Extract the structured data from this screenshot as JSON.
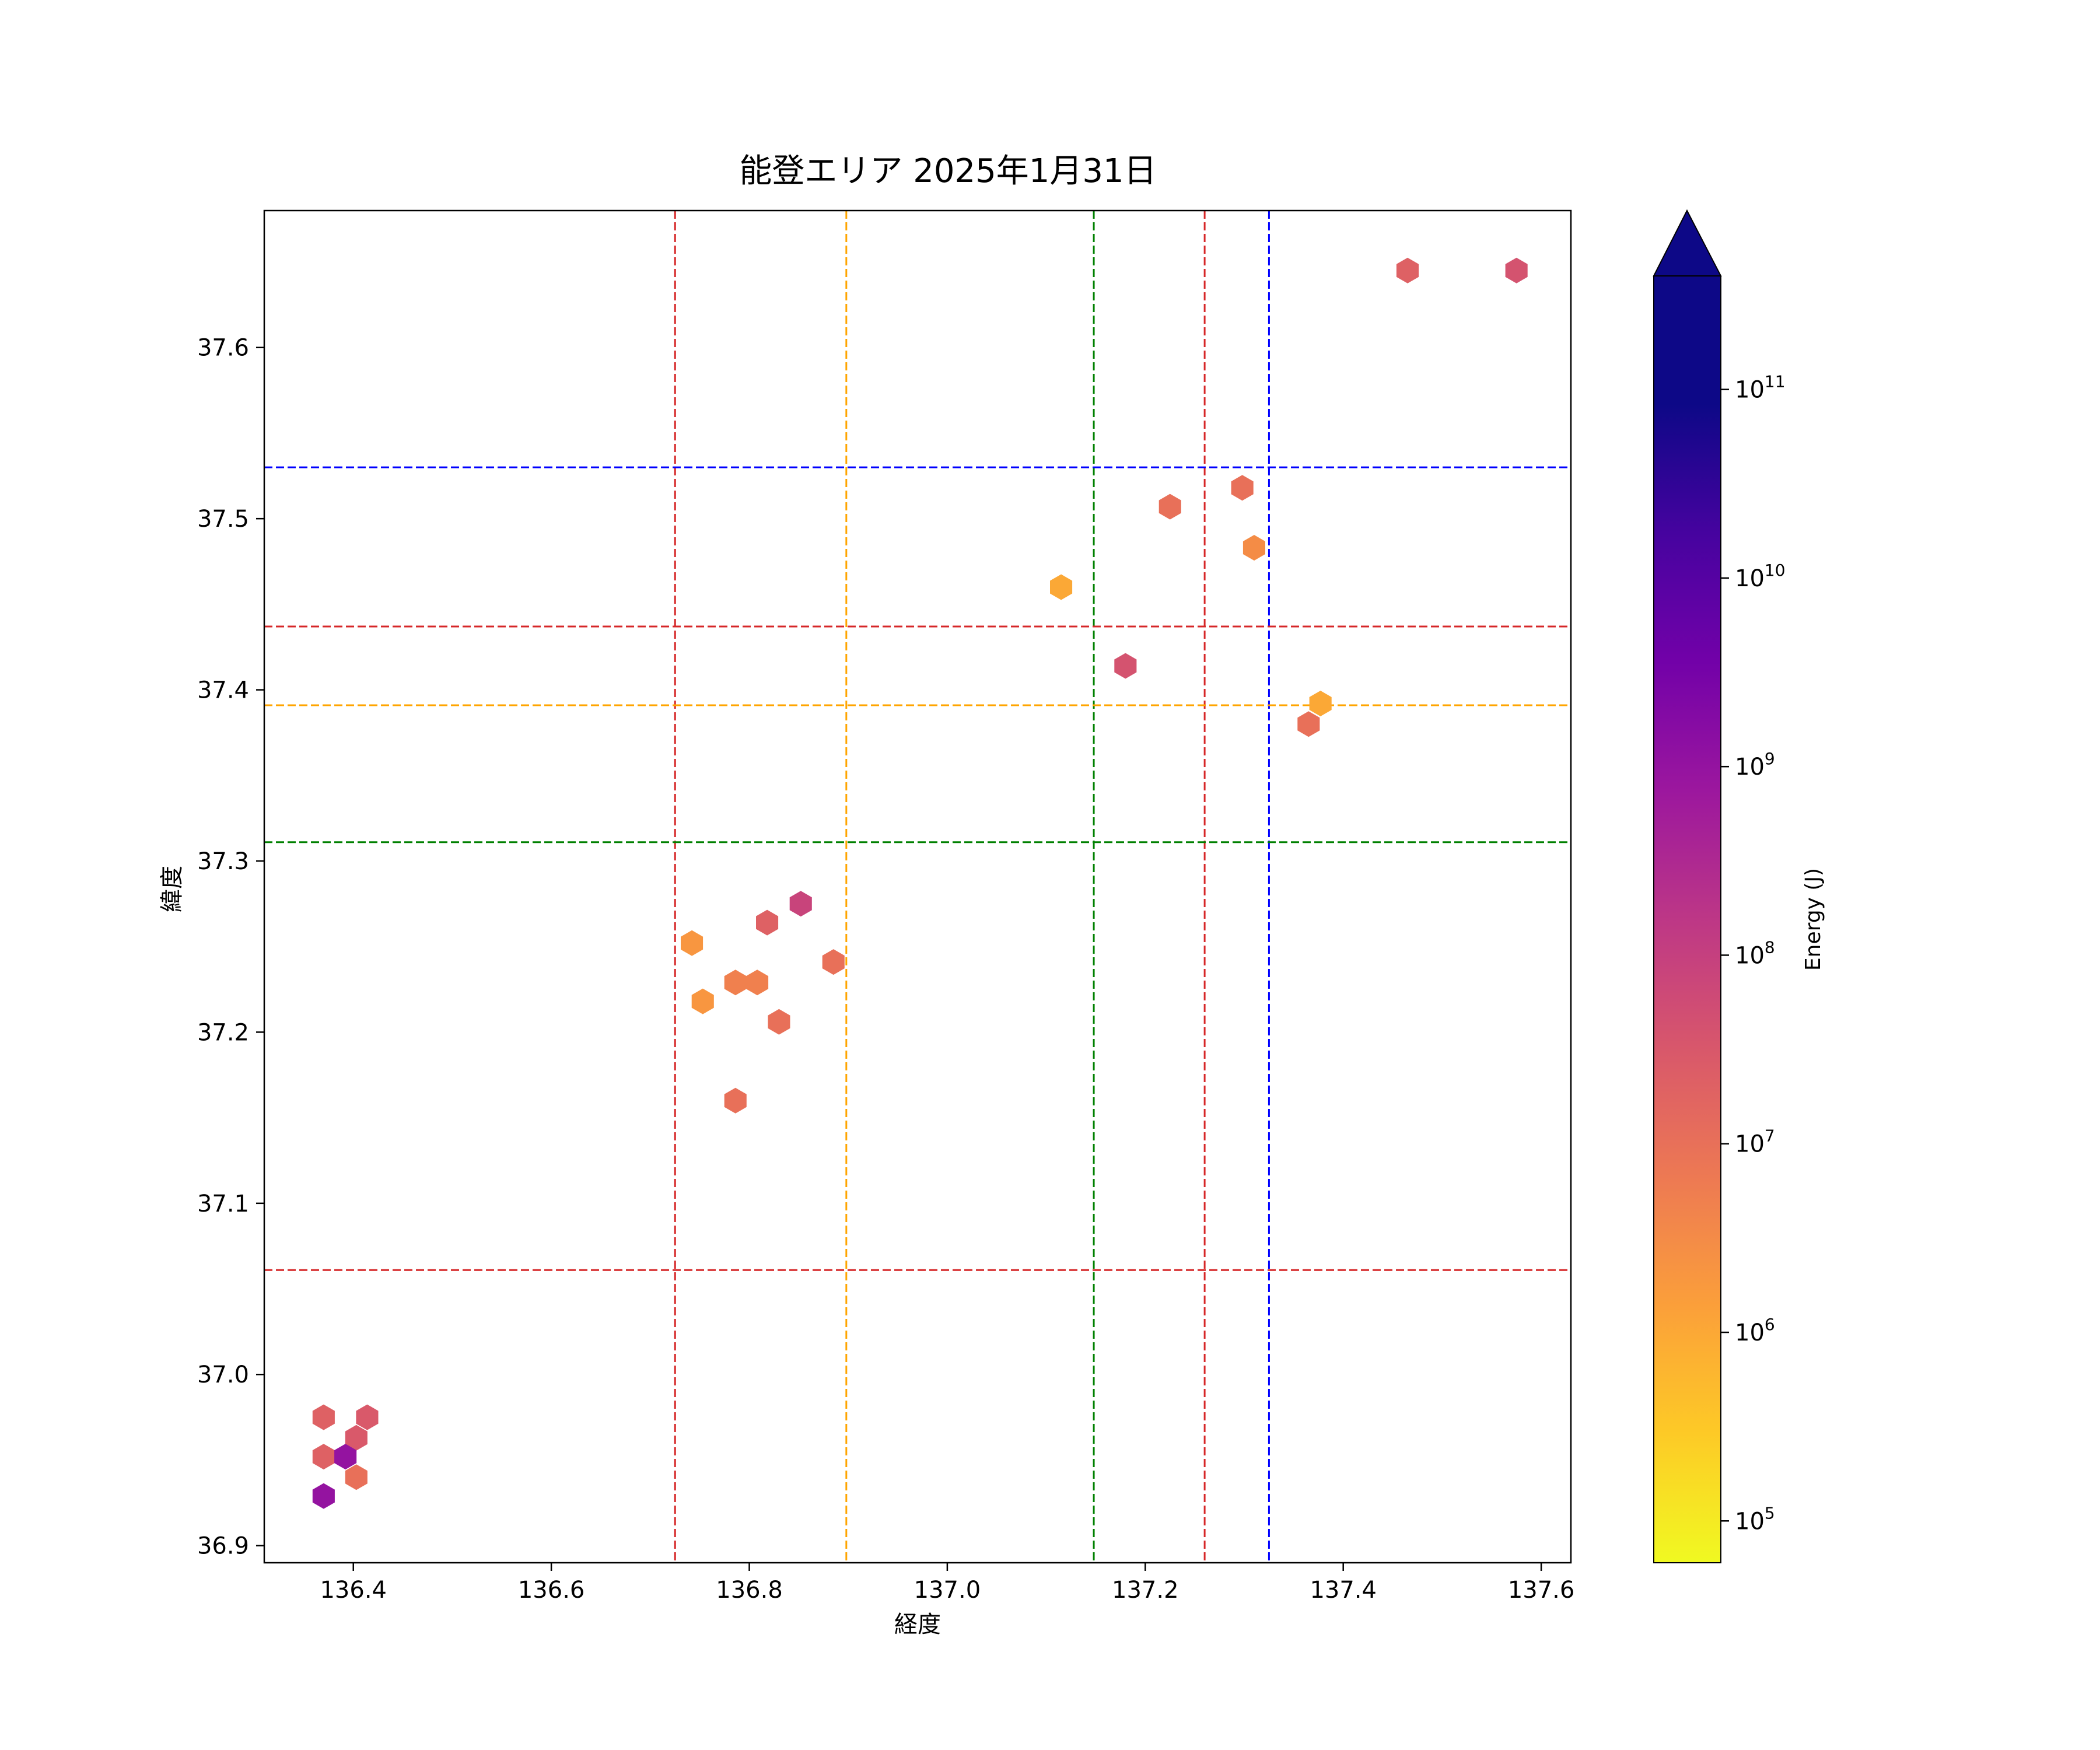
{
  "chart_data": {
    "type": "heatmap",
    "subtype": "hexbin",
    "title": "能登エリア 2025年1月31日",
    "xlabel": "経度",
    "ylabel": "緯度",
    "xlim": [
      136.31,
      137.63
    ],
    "ylim": [
      36.89,
      37.68
    ],
    "xticks": [
      136.4,
      136.6,
      136.8,
      137.0,
      137.2,
      137.4,
      137.6
    ],
    "xtick_labels": [
      "136.4",
      "136.6",
      "136.8",
      "137.0",
      "137.2",
      "137.4",
      "137.6"
    ],
    "yticks": [
      36.9,
      37.0,
      37.1,
      37.2,
      37.3,
      37.4,
      37.5,
      37.6
    ],
    "ytick_labels": [
      "36.9",
      "37.0",
      "37.1",
      "37.2",
      "37.3",
      "37.4",
      "37.5",
      "37.6"
    ],
    "grid": false,
    "points": [
      {
        "x": 137.465,
        "y": 37.645,
        "energy": 20000000.0
      },
      {
        "x": 137.575,
        "y": 37.645,
        "energy": 40000000.0
      },
      {
        "x": 137.298,
        "y": 37.518,
        "energy": 10000000.0
      },
      {
        "x": 137.225,
        "y": 37.507,
        "energy": 10000000.0
      },
      {
        "x": 137.31,
        "y": 37.483,
        "energy": 3000000.0
      },
      {
        "x": 137.115,
        "y": 37.46,
        "energy": 1000000.0
      },
      {
        "x": 137.18,
        "y": 37.414,
        "energy": 40000000.0
      },
      {
        "x": 137.377,
        "y": 37.392,
        "energy": 1000000.0
      },
      {
        "x": 137.365,
        "y": 37.38,
        "energy": 10000000.0
      },
      {
        "x": 136.852,
        "y": 37.275,
        "energy": 80000000.0
      },
      {
        "x": 136.818,
        "y": 37.264,
        "energy": 20000000.0
      },
      {
        "x": 136.742,
        "y": 37.252,
        "energy": 2000000.0
      },
      {
        "x": 136.885,
        "y": 37.241,
        "energy": 10000000.0
      },
      {
        "x": 136.786,
        "y": 37.229,
        "energy": 5000000.0
      },
      {
        "x": 136.808,
        "y": 37.229,
        "energy": 5000000.0
      },
      {
        "x": 136.753,
        "y": 37.218,
        "energy": 2000000.0
      },
      {
        "x": 136.83,
        "y": 37.206,
        "energy": 10000000.0
      },
      {
        "x": 136.786,
        "y": 37.16,
        "energy": 10000000.0
      },
      {
        "x": 136.37,
        "y": 36.975,
        "energy": 20000000.0
      },
      {
        "x": 136.414,
        "y": 36.975,
        "energy": 30000000.0
      },
      {
        "x": 136.403,
        "y": 36.963,
        "energy": 30000000.0
      },
      {
        "x": 136.37,
        "y": 36.952,
        "energy": 20000000.0
      },
      {
        "x": 136.392,
        "y": 36.952,
        "energy": 1000000000.0
      },
      {
        "x": 136.403,
        "y": 36.94,
        "energy": 10000000.0
      },
      {
        "x": 136.37,
        "y": 36.929,
        "energy": 1000000000.0
      }
    ],
    "reference_lines": [
      {
        "orientation": "vertical",
        "value": 136.725,
        "color": "#d62728"
      },
      {
        "orientation": "vertical",
        "value": 136.898,
        "color": "#ffa500"
      },
      {
        "orientation": "vertical",
        "value": 137.148,
        "color": "#008000"
      },
      {
        "orientation": "vertical",
        "value": 137.26,
        "color": "#d62728"
      },
      {
        "orientation": "vertical",
        "value": 137.325,
        "color": "#0000ff"
      },
      {
        "orientation": "horizontal",
        "value": 37.53,
        "color": "#0000ff"
      },
      {
        "orientation": "horizontal",
        "value": 37.437,
        "color": "#d62728"
      },
      {
        "orientation": "horizontal",
        "value": 37.391,
        "color": "#ffa500"
      },
      {
        "orientation": "horizontal",
        "value": 37.311,
        "color": "#008000"
      },
      {
        "orientation": "horizontal",
        "value": 37.061,
        "color": "#d62728"
      }
    ],
    "colorbar": {
      "label": "Energy (J)",
      "scale": "log",
      "colormap": "plasma_r",
      "range": [
        60000,
        400000000000
      ],
      "extend": "max",
      "ticks": [
        {
          "value": 100000,
          "base": "10",
          "exp": "5"
        },
        {
          "value": 1000000,
          "base": "10",
          "exp": "6"
        },
        {
          "value": 10000000,
          "base": "10",
          "exp": "7"
        },
        {
          "value": 100000000,
          "base": "10",
          "exp": "8"
        },
        {
          "value": 1000000000,
          "base": "10",
          "exp": "9"
        },
        {
          "value": 10000000000,
          "base": "10",
          "exp": "10"
        },
        {
          "value": 100000000000,
          "base": "10",
          "exp": "11"
        }
      ],
      "over_color": "#0d0887"
    }
  }
}
